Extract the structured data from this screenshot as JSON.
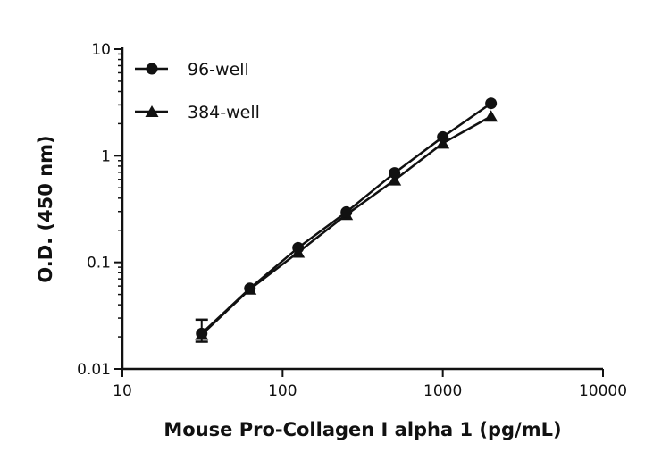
{
  "chart_data": {
    "type": "line",
    "title": "",
    "xlabel": "Mouse Pro-Collagen I alpha 1 (pg/mL)",
    "ylabel": "O.D. (450 nm)",
    "xscale": "log",
    "yscale": "log",
    "xlim": [
      10,
      10000
    ],
    "ylim": [
      0.01,
      10
    ],
    "xticks": [
      "10",
      "100",
      "1000",
      "10000"
    ],
    "yticks": [
      "0.01",
      "0.1",
      "1",
      "10"
    ],
    "grid": false,
    "legend_position": "top-left",
    "series": [
      {
        "name": "96-well",
        "marker": "circle",
        "color": "#111111",
        "x": [
          31.25,
          62.5,
          125,
          250,
          500,
          1000,
          2000
        ],
        "y": [
          0.0215,
          0.057,
          0.137,
          0.296,
          0.69,
          1.5,
          3.1
        ],
        "error_low": [
          0.018,
          null,
          null,
          null,
          null,
          null,
          null
        ],
        "error_high": [
          0.029,
          null,
          null,
          null,
          null,
          null,
          null
        ]
      },
      {
        "name": "384-well",
        "marker": "triangle",
        "color": "#111111",
        "x": [
          31.25,
          62.5,
          125,
          250,
          500,
          1000,
          2000
        ],
        "y": [
          0.021,
          0.056,
          0.124,
          0.28,
          0.59,
          1.31,
          2.34
        ]
      }
    ]
  }
}
